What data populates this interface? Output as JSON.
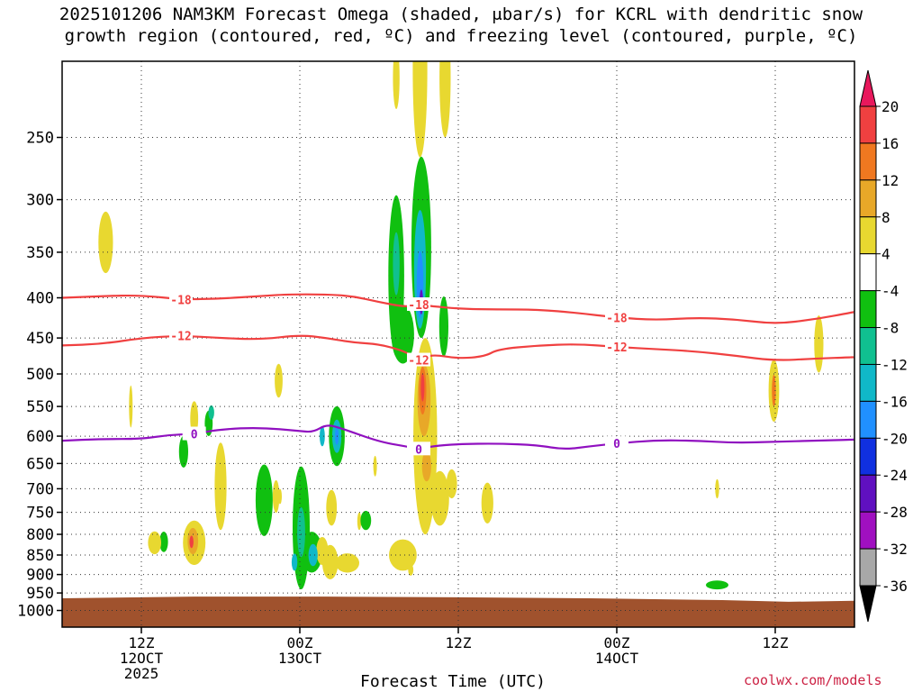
{
  "title": {
    "line1": "2025101206 NAM3KM Forecast Omega (shaded, μbar/s) for KCRL with dendritic snow",
    "line2": "growth region (contoured, red, ºC) and freezing level (contoured, purple, ºC)"
  },
  "credit": "coolwx.com/models",
  "chart_data": {
    "type": "heatmap",
    "xlabel": "Forecast Time (UTC)",
    "x_range_hours": [
      0,
      60
    ],
    "x_ticks": [
      {
        "hour": 6,
        "lines": [
          "12Z",
          "12OCT",
          "2025"
        ]
      },
      {
        "hour": 18,
        "lines": [
          "00Z",
          "13OCT"
        ]
      },
      {
        "hour": 30,
        "lines": [
          "12Z"
        ]
      },
      {
        "hour": 42,
        "lines": [
          "00Z",
          "14OCT"
        ]
      },
      {
        "hour": 54,
        "lines": [
          "12Z"
        ]
      }
    ],
    "y_axis": "pressure_hPa",
    "y_log": true,
    "y_range": [
      1050,
      200
    ],
    "y_ticks": [
      250,
      300,
      350,
      400,
      450,
      500,
      550,
      600,
      650,
      700,
      750,
      800,
      850,
      900,
      950,
      1000
    ],
    "grid": true,
    "colorbar": {
      "levels": [
        20,
        16,
        12,
        8,
        4,
        -4,
        -8,
        -12,
        -16,
        -20,
        -24,
        -28,
        -32,
        -36
      ],
      "colors": [
        "#e8185c",
        "#f04040",
        "#f07820",
        "#e8a828",
        "#e8d830",
        "#ffffff",
        "#10c010",
        "#10c090",
        "#10b8c8",
        "#2090ff",
        "#1030e0",
        "#6010c0",
        "#a010c0",
        "#a8a8a8",
        "#000000"
      ]
    },
    "ground_color": "#a0522d",
    "contours": [
      {
        "label": "-18",
        "color": "#f04040",
        "points": [
          [
            0,
            400
          ],
          [
            3,
            398
          ],
          [
            6,
            397
          ],
          [
            9,
            402
          ],
          [
            12,
            401
          ],
          [
            15,
            398
          ],
          [
            17,
            396
          ],
          [
            20,
            396
          ],
          [
            22,
            398
          ],
          [
            24,
            405
          ],
          [
            26,
            411
          ],
          [
            27,
            408
          ],
          [
            28,
            410
          ],
          [
            30,
            413
          ],
          [
            33,
            414
          ],
          [
            36,
            414
          ],
          [
            39,
            418
          ],
          [
            42,
            424
          ],
          [
            45,
            427
          ],
          [
            48,
            424
          ],
          [
            51,
            426
          ],
          [
            54,
            432
          ],
          [
            57,
            426
          ],
          [
            60,
            417
          ]
        ]
      },
      {
        "label": "-12",
        "color": "#f04040",
        "points": [
          [
            0,
            460
          ],
          [
            3,
            458
          ],
          [
            6,
            450
          ],
          [
            9,
            447
          ],
          [
            12,
            450
          ],
          [
            15,
            452
          ],
          [
            18,
            446
          ],
          [
            20,
            450
          ],
          [
            22,
            456
          ],
          [
            24,
            458
          ],
          [
            26,
            468
          ],
          [
            27,
            480
          ],
          [
            28,
            472
          ],
          [
            30,
            478
          ],
          [
            32,
            475
          ],
          [
            33,
            465
          ],
          [
            36,
            460
          ],
          [
            39,
            458
          ],
          [
            42,
            462
          ],
          [
            45,
            465
          ],
          [
            48,
            468
          ],
          [
            51,
            474
          ],
          [
            54,
            481
          ],
          [
            57,
            478
          ],
          [
            60,
            476
          ]
        ]
      },
      {
        "label": "0",
        "color": "#9010c0",
        "points": [
          [
            0,
            608
          ],
          [
            3,
            605
          ],
          [
            6,
            605
          ],
          [
            8,
            598
          ],
          [
            10,
            596
          ],
          [
            12,
            588
          ],
          [
            15,
            585
          ],
          [
            18,
            591
          ],
          [
            19,
            593
          ],
          [
            20,
            580
          ],
          [
            21,
            585
          ],
          [
            24,
            610
          ],
          [
            26,
            618
          ],
          [
            27,
            623
          ],
          [
            28,
            618
          ],
          [
            30,
            614
          ],
          [
            33,
            613
          ],
          [
            36,
            616
          ],
          [
            38,
            624
          ],
          [
            40,
            618
          ],
          [
            42,
            613
          ],
          [
            45,
            607
          ],
          [
            48,
            608
          ],
          [
            51,
            612
          ],
          [
            54,
            610
          ],
          [
            57,
            608
          ],
          [
            60,
            606
          ]
        ]
      }
    ],
    "cells": [
      {
        "t": 3.3,
        "p": 340,
        "dt": 0.55,
        "dp": 32,
        "v": 6
      },
      {
        "t": 16.4,
        "p": 510,
        "dt": 0.3,
        "dp": 26,
        "v": 6
      },
      {
        "t": 10.0,
        "p": 570,
        "dt": 0.3,
        "dp": 30,
        "v": 6
      },
      {
        "t": 9.2,
        "p": 628,
        "dt": 0.35,
        "dp": 30,
        "v": -6
      },
      {
        "t": 11.1,
        "p": 578,
        "dt": 0.3,
        "dp": 22,
        "v": -6
      },
      {
        "t": 11.3,
        "p": 560,
        "dt": 0.22,
        "dp": 12,
        "v": -10
      },
      {
        "t": 12.0,
        "p": 695,
        "dt": 0.45,
        "dp": 95,
        "v": 6
      },
      {
        "t": 10.0,
        "p": 820,
        "dt": 0.85,
        "dp": 55,
        "v": 6
      },
      {
        "t": 9.9,
        "p": 816,
        "dt": 0.4,
        "dp": 32,
        "v": 10
      },
      {
        "t": 9.8,
        "p": 818,
        "dt": 0.15,
        "dp": 15,
        "v": 16
      },
      {
        "t": 7.7,
        "p": 818,
        "dt": 0.32,
        "dp": 25,
        "v": -6
      },
      {
        "t": 15.3,
        "p": 724,
        "dt": 0.65,
        "dp": 80,
        "v": -6
      },
      {
        "t": 16.2,
        "p": 716,
        "dt": 0.25,
        "dp": 35,
        "v": 4
      },
      {
        "t": 18.1,
        "p": 785,
        "dt": 0.65,
        "dp": 155,
        "v": -6
      },
      {
        "t": 18.1,
        "p": 795,
        "dt": 0.3,
        "dp": 60,
        "v": -10
      },
      {
        "t": 18.9,
        "p": 843,
        "dt": 0.8,
        "dp": 52,
        "v": -6
      },
      {
        "t": 19.0,
        "p": 850,
        "dt": 0.35,
        "dp": 28,
        "v": -12
      },
      {
        "t": 17.6,
        "p": 868,
        "dt": 0.22,
        "dp": 22,
        "v": -14
      },
      {
        "t": 16.5,
        "p": 716,
        "dt": 0.1,
        "dp": 16,
        "v": 4
      },
      {
        "t": 20.4,
        "p": 740,
        "dt": 0.4,
        "dp": 40,
        "v": 6
      },
      {
        "t": 20.3,
        "p": 868,
        "dt": 0.6,
        "dp": 45,
        "v": 6
      },
      {
        "t": 19.7,
        "p": 840,
        "dt": 0.45,
        "dp": 35,
        "v": 6
      },
      {
        "t": 21.6,
        "p": 870,
        "dt": 0.9,
        "dp": 25,
        "v": 6
      },
      {
        "t": 23.0,
        "p": 768,
        "dt": 0.4,
        "dp": 22,
        "v": -6
      },
      {
        "t": 22.5,
        "p": 770,
        "dt": 0.15,
        "dp": 20,
        "v": 4
      },
      {
        "t": 20.8,
        "p": 600,
        "dt": 0.6,
        "dp": 55,
        "v": -6
      },
      {
        "t": 20.8,
        "p": 600,
        "dt": 0.35,
        "dp": 30,
        "v": -12
      },
      {
        "t": 20.8,
        "p": 600,
        "dt": 0.14,
        "dp": 15,
        "v": -16
      },
      {
        "t": 19.7,
        "p": 600,
        "dt": 0.2,
        "dp": 18,
        "v": -14
      },
      {
        "t": 23.7,
        "p": 655,
        "dt": 0.1,
        "dp": 20,
        "v": 6
      },
      {
        "t": 25.8,
        "p": 850,
        "dt": 1.05,
        "dp": 40,
        "v": 6
      },
      {
        "t": 26.4,
        "p": 888,
        "dt": 0.2,
        "dp": 15,
        "v": 6
      },
      {
        "t": 25.3,
        "p": 375,
        "dt": 0.6,
        "dp": 100,
        "v": -6
      },
      {
        "t": 25.8,
        "p": 445,
        "dt": 0.85,
        "dp": 40,
        "v": -6
      },
      {
        "t": 25.3,
        "p": 362,
        "dt": 0.25,
        "dp": 35,
        "v": -10
      },
      {
        "t": 27.2,
        "p": 345,
        "dt": 0.75,
        "dp": 105,
        "v": -6
      },
      {
        "t": 27.1,
        "p": 368,
        "dt": 0.45,
        "dp": 70,
        "v": -12
      },
      {
        "t": 27.1,
        "p": 385,
        "dt": 0.25,
        "dp": 40,
        "v": -16
      },
      {
        "t": 27.2,
        "p": 405,
        "dt": 0.1,
        "dp": 15,
        "v": -24
      },
      {
        "t": 28.9,
        "p": 435,
        "dt": 0.35,
        "dp": 40,
        "v": -6
      },
      {
        "t": 27.1,
        "p": 205,
        "dt": 0.55,
        "dp": 60,
        "v": 6
      },
      {
        "t": 29.0,
        "p": 210,
        "dt": 0.42,
        "dp": 40,
        "v": 6
      },
      {
        "t": 25.3,
        "p": 210,
        "dt": 0.25,
        "dp": 20,
        "v": 6
      },
      {
        "t": 27.5,
        "p": 600,
        "dt": 0.9,
        "dp": 200,
        "v": 6
      },
      {
        "t": 27.4,
        "p": 540,
        "dt": 0.5,
        "dp": 60,
        "v": 10
      },
      {
        "t": 27.3,
        "p": 525,
        "dt": 0.28,
        "dp": 38,
        "v": 14
      },
      {
        "t": 27.3,
        "p": 520,
        "dt": 0.12,
        "dp": 22,
        "v": 18
      },
      {
        "t": 27.6,
        "p": 655,
        "dt": 0.35,
        "dp": 30,
        "v": 10
      },
      {
        "t": 28.6,
        "p": 720,
        "dt": 0.7,
        "dp": 60,
        "v": 6
      },
      {
        "t": 29.5,
        "p": 690,
        "dt": 0.4,
        "dp": 30,
        "v": 6
      },
      {
        "t": 32.2,
        "p": 730,
        "dt": 0.45,
        "dp": 45,
        "v": 6
      },
      {
        "t": 49.6,
        "p": 700,
        "dt": 0.15,
        "dp": 20,
        "v": 6
      },
      {
        "t": 49.6,
        "p": 928,
        "dt": 0.85,
        "dp": 12,
        "v": -6
      },
      {
        "t": 53.9,
        "p": 525,
        "dt": 0.4,
        "dp": 50,
        "v": 6
      },
      {
        "t": 53.9,
        "p": 525,
        "dt": 0.15,
        "dp": 25,
        "v": 12
      },
      {
        "t": 57.3,
        "p": 458,
        "dt": 0.35,
        "dp": 40,
        "v": 6
      },
      {
        "t": 5.2,
        "p": 550,
        "dt": 0.12,
        "dp": 35,
        "v": 6
      },
      {
        "t": 7.0,
        "p": 820,
        "dt": 0.5,
        "dp": 28,
        "v": 6
      }
    ],
    "ground_pressure": [
      [
        0,
        965
      ],
      [
        10,
        960
      ],
      [
        20,
        960
      ],
      [
        30,
        962
      ],
      [
        40,
        965
      ],
      [
        50,
        970
      ],
      [
        55,
        975
      ],
      [
        60,
        972
      ]
    ]
  }
}
